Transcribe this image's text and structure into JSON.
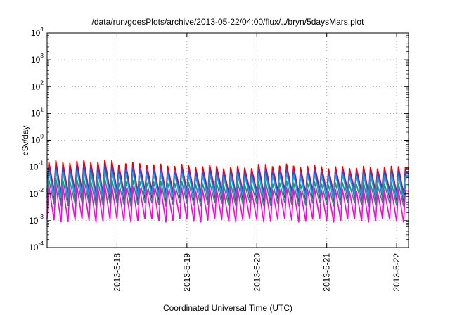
{
  "chart_data": {
    "type": "line",
    "title": "/data/run/goesPlots/archive/2013-05-22/04:00/flux/../bryn/5daysMars.plot",
    "xlabel": "Coordinated Universal Time (UTC)",
    "ylabel": "cSv/day",
    "yscale": "log",
    "ylim": [
      0.0001,
      10000
    ],
    "yticks": [
      {
        "base": "10",
        "exp": "-4"
      },
      {
        "base": "10",
        "exp": "-3"
      },
      {
        "base": "10",
        "exp": "-2"
      },
      {
        "base": "10",
        "exp": "-1"
      },
      {
        "base": "10",
        "exp": "0"
      },
      {
        "base": "10",
        "exp": "1"
      },
      {
        "base": "10",
        "exp": "2"
      },
      {
        "base": "10",
        "exp": "3"
      },
      {
        "base": "10",
        "exp": "4"
      }
    ],
    "xlim": [
      0,
      5.17
    ],
    "xticks": [
      {
        "label": "2013-5-18",
        "pos": 1.0
      },
      {
        "label": "2013-5-19",
        "pos": 2.0
      },
      {
        "label": "2013-5-20",
        "pos": 3.0
      },
      {
        "label": "2013-5-21",
        "pos": 4.0
      },
      {
        "label": "2013-5-22",
        "pos": 5.0
      }
    ],
    "grid": true,
    "legend": "none",
    "pattern": {
      "period_days": 0.1,
      "peak_frac": 0.25,
      "description": "sawtooth: each cycle rises sharply to a peak then decays"
    },
    "series": [
      {
        "color": "#e8000b",
        "peak": [
          0.16,
          0.17,
          0.14,
          0.12,
          0.11,
          0.1,
          0.12,
          0.11,
          0.1,
          0.1,
          0.11
        ],
        "trough": 0.012
      },
      {
        "color": "#a0009a",
        "peak": [
          0.1,
          0.1,
          0.085,
          0.075,
          0.07,
          0.065,
          0.075,
          0.07,
          0.065,
          0.065,
          0.07
        ],
        "trough": 0.006
      },
      {
        "color": "#1f4fff",
        "peak": [
          0.09,
          0.1,
          0.085,
          0.075,
          0.07,
          0.065,
          0.075,
          0.07,
          0.065,
          0.065,
          0.07
        ],
        "trough": 0.01
      },
      {
        "color": "#1aa0e6",
        "peak": [
          0.07,
          0.07,
          0.06,
          0.055,
          0.05,
          0.05,
          0.055,
          0.05,
          0.05,
          0.05,
          0.05
        ],
        "trough": 0.008
      },
      {
        "color": "#0f9a78",
        "peak": [
          0.035,
          0.035,
          0.03,
          0.028,
          0.026,
          0.025,
          0.028,
          0.026,
          0.025,
          0.025,
          0.026
        ],
        "trough": 0.004
      },
      {
        "color": "#ff00e0",
        "peak": [
          0.02,
          0.02,
          0.017,
          0.016,
          0.015,
          0.015,
          0.016,
          0.015,
          0.014,
          0.014,
          0.015
        ],
        "trough": 0.001
      }
    ]
  }
}
